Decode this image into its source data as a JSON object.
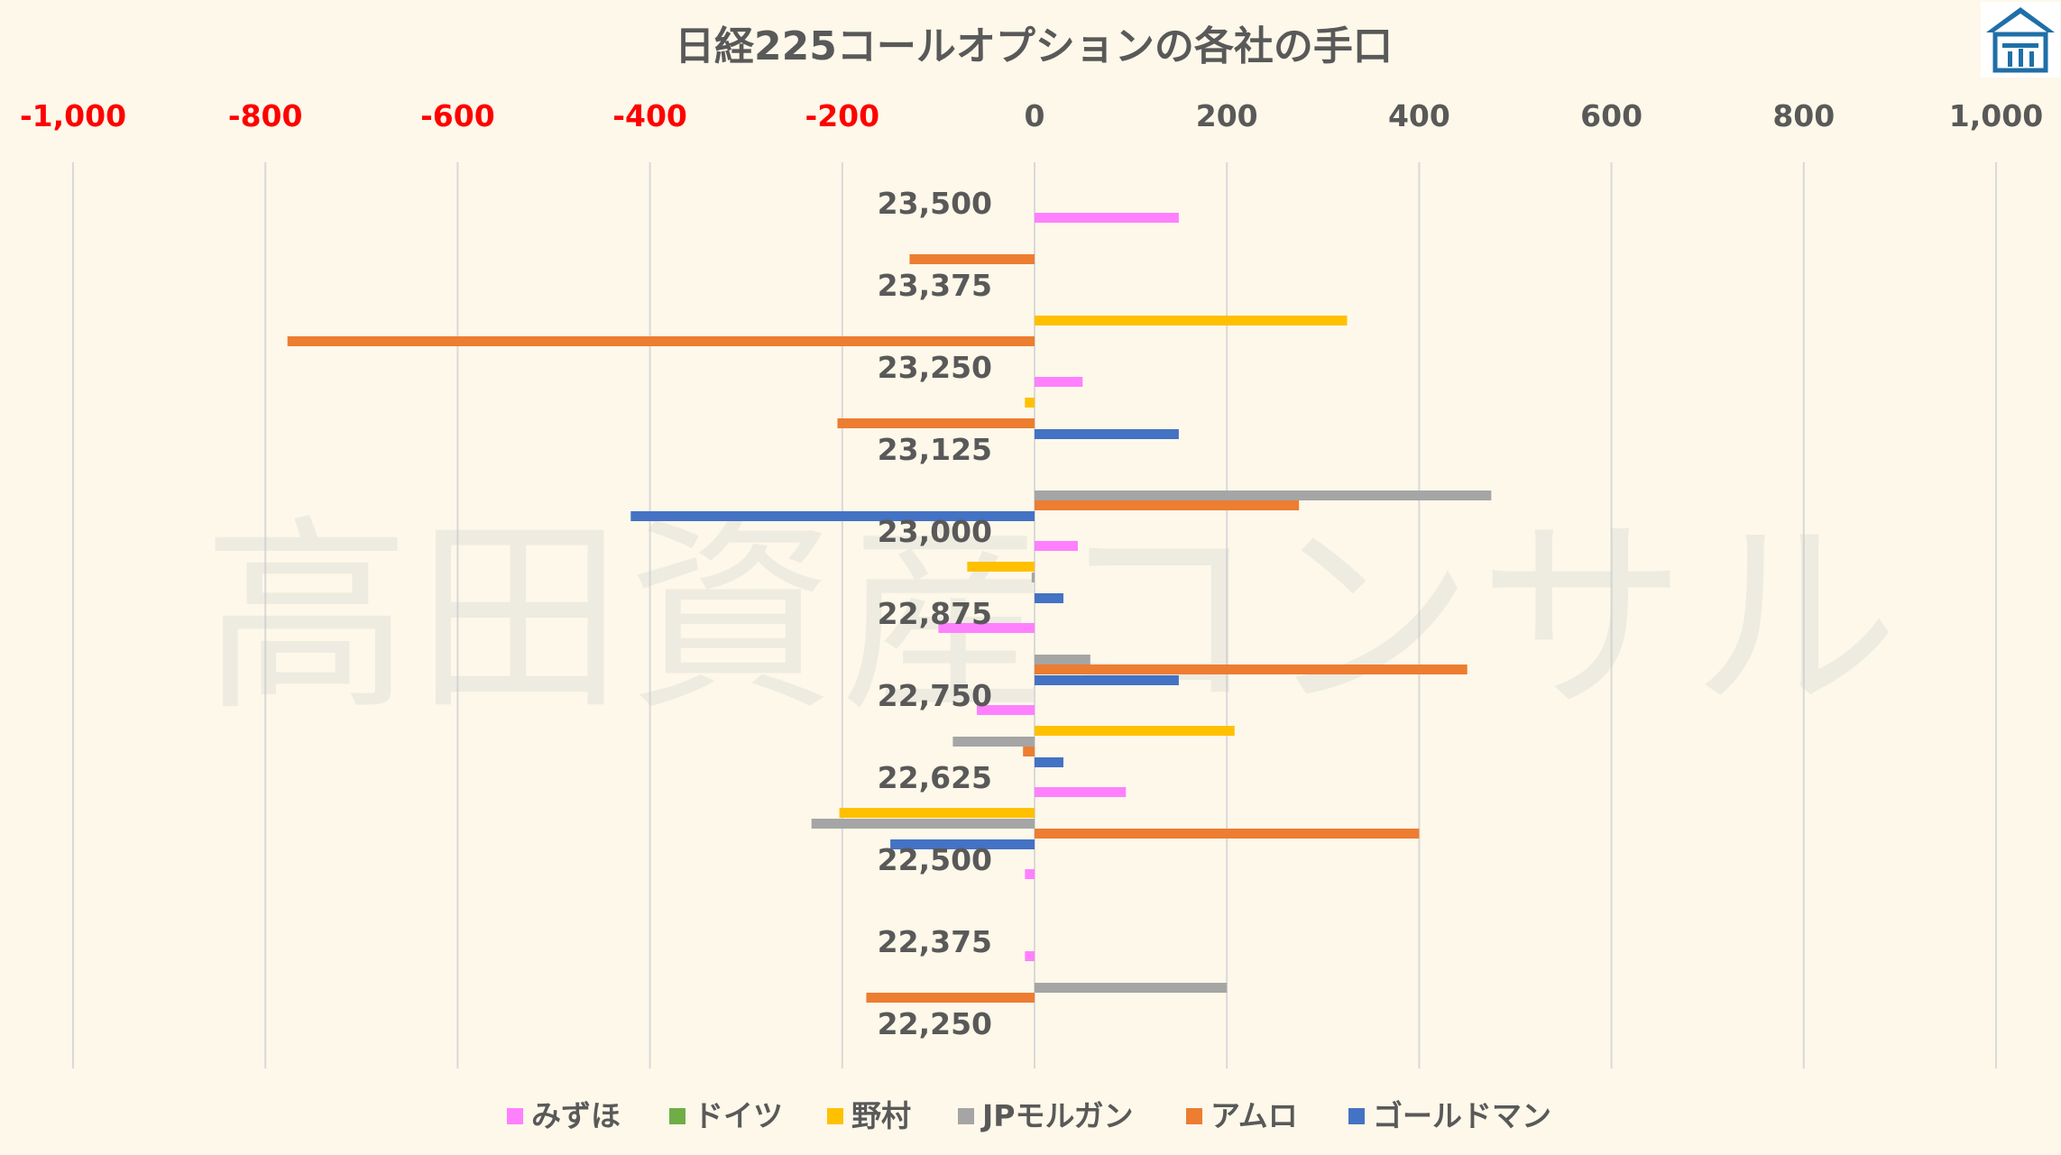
{
  "chart_data": {
    "type": "bar",
    "orientation": "horizontal",
    "title": "日経225コールオプションの各社の手口",
    "watermark": "高田資産コンサル",
    "x_ticks": [
      "-1,000",
      "-800",
      "-600",
      "-400",
      "-200",
      "0",
      "200",
      "400",
      "600",
      "800",
      "1,000"
    ],
    "xlim": [
      -1000,
      1000
    ],
    "categories": [
      "23,500",
      "23,375",
      "23,250",
      "23,125",
      "23,000",
      "22,875",
      "22,750",
      "22,625",
      "22,500",
      "22,375",
      "22,250"
    ],
    "series": [
      {
        "name": "みずほ",
        "color": "#ff80ff",
        "values": [
          0,
          150,
          0,
          50,
          0,
          45,
          -100,
          -60,
          95,
          -10,
          -10
        ]
      },
      {
        "name": "ドイツ",
        "color": "#70ad47",
        "values": [
          0,
          0,
          0,
          0,
          0,
          0,
          0,
          0,
          0,
          0,
          0
        ]
      },
      {
        "name": "野村",
        "color": "#ffc000",
        "values": [
          0,
          0,
          325,
          -10,
          0,
          -70,
          0,
          208,
          -203,
          0,
          0
        ]
      },
      {
        "name": "JPモルガン",
        "color": "#a5a5a5",
        "values": [
          0,
          0,
          0,
          0,
          475,
          -3,
          58,
          -85,
          -232,
          0,
          200
        ]
      },
      {
        "name": "アムロ",
        "color": "#ed7d31",
        "values": [
          0,
          -130,
          -777,
          -205,
          275,
          0,
          450,
          -12,
          400,
          0,
          -175
        ]
      },
      {
        "name": "ゴールドマン",
        "color": "#4472c4",
        "values": [
          0,
          0,
          0,
          150,
          -420,
          30,
          150,
          30,
          -150,
          0,
          0
        ]
      }
    ],
    "negative_tick_color": "#ff0000",
    "positive_tick_color": "#595959",
    "grid": true,
    "legend_position": "bottom"
  }
}
